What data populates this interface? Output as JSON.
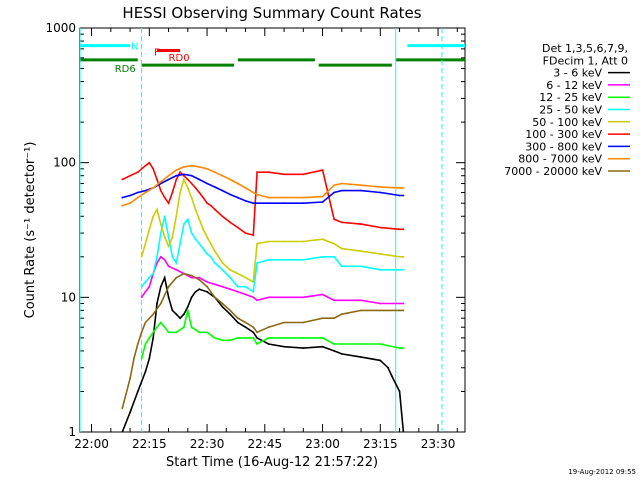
{
  "chart_data": {
    "type": "line",
    "title": "HESSI Observing Summary Count Rates",
    "xlabel": "Start Time (16-Aug-12 21:57:22)",
    "ylabel": "Count Rate (s⁻¹ detector⁻¹)",
    "ylog": true,
    "ylim": [
      1,
      1000
    ],
    "xlim_minutes": [
      -3,
      97
    ],
    "x_ticks": [
      {
        "label": "22:00",
        "min": 0
      },
      {
        "label": "22:15",
        "min": 15
      },
      {
        "label": "22:30",
        "min": 30
      },
      {
        "label": "22:45",
        "min": 45
      },
      {
        "label": "23:00",
        "min": 60
      },
      {
        "label": "23:15",
        "min": 75
      },
      {
        "label": "23:30",
        "min": 90
      }
    ],
    "y_ticks": [
      {
        "label": "1",
        "v": 1
      },
      {
        "label": "10",
        "v": 10
      },
      {
        "label": "100",
        "v": 100
      },
      {
        "label": "1000",
        "v": 1000
      }
    ],
    "legend": {
      "placement": "right",
      "header": [
        "Det 1,3,5,6,7,9,",
        "FDecim 1, Att 0"
      ]
    },
    "series": [
      {
        "name": "3 - 6 keV",
        "color": "#000000",
        "x": [
          8,
          10,
          12,
          14,
          15,
          16,
          17,
          18,
          19,
          20,
          21,
          22,
          23,
          24,
          25,
          26,
          27,
          28,
          30,
          32,
          34,
          36,
          38,
          40,
          42,
          43,
          46,
          50,
          55,
          60,
          63,
          65,
          70,
          75,
          77,
          78,
          80,
          81
        ],
        "y": [
          1,
          1.4,
          2,
          2.8,
          3.5,
          5,
          9,
          12,
          14,
          10,
          8,
          7.5,
          7,
          7.5,
          8.5,
          10,
          11,
          11.5,
          11,
          10,
          8.5,
          7.5,
          6.5,
          6,
          5.5,
          5,
          4.5,
          4.3,
          4.2,
          4.3,
          4,
          3.8,
          3.6,
          3.4,
          3,
          2.6,
          2,
          1
        ]
      },
      {
        "name": "6 - 12 keV",
        "color": "#ff00ff",
        "x": [
          13,
          14,
          15,
          16,
          17,
          18,
          19,
          20,
          22,
          24,
          26,
          28,
          30,
          32,
          34,
          36,
          38,
          40,
          42,
          43,
          46,
          50,
          55,
          60,
          63,
          65,
          70,
          75,
          80,
          81
        ],
        "y": [
          10,
          11,
          12,
          15,
          18,
          20,
          19,
          17,
          16,
          15,
          14,
          14,
          13,
          12.5,
          12,
          11.5,
          11,
          10.5,
          10,
          9.5,
          10,
          10,
          10,
          10.5,
          9.5,
          9.5,
          9.5,
          9,
          9,
          9
        ]
      },
      {
        "name": "12 - 25 keV",
        "color": "#00ff00",
        "x": [
          13,
          14,
          15,
          16,
          17,
          18,
          19,
          20,
          22,
          24,
          25,
          26,
          28,
          30,
          32,
          34,
          36,
          38,
          40,
          42,
          43,
          46,
          50,
          55,
          60,
          63,
          65,
          70,
          75,
          80,
          81
        ],
        "y": [
          3.5,
          4.5,
          5,
          5.5,
          6,
          6.5,
          6,
          5.5,
          5.5,
          6,
          8,
          6,
          5.5,
          5.5,
          5,
          4.8,
          4.8,
          5,
          5,
          5,
          4.5,
          5,
          5,
          5,
          5,
          4.5,
          4.5,
          4.5,
          4.5,
          4.2,
          4.2
        ]
      },
      {
        "name": "25 - 50 keV",
        "color": "#00ffff",
        "x": [
          13,
          14,
          15,
          16,
          17,
          18,
          19,
          20,
          21,
          22,
          23,
          24,
          25,
          26,
          27,
          28,
          29,
          30,
          31,
          32,
          34,
          36,
          38,
          40,
          42,
          43,
          46,
          50,
          55,
          60,
          63,
          65,
          70,
          75,
          80,
          81
        ],
        "y": [
          12,
          13,
          14,
          15,
          20,
          30,
          40,
          28,
          20,
          18,
          25,
          35,
          38,
          30,
          27,
          25,
          23,
          21,
          20,
          18,
          16,
          14,
          12,
          12,
          11,
          18,
          19,
          19,
          19,
          20,
          20,
          17,
          17,
          16,
          16,
          16
        ]
      },
      {
        "name": "50 - 100 keV",
        "color": "#cccc00",
        "x": [
          13,
          14,
          15,
          16,
          17,
          18,
          19,
          20,
          21,
          22,
          23,
          24,
          25,
          26,
          27,
          28,
          29,
          30,
          31,
          32,
          33,
          34,
          36,
          38,
          40,
          42,
          43,
          46,
          50,
          55,
          60,
          63,
          65,
          70,
          75,
          80,
          81
        ],
        "y": [
          20,
          25,
          32,
          40,
          45,
          35,
          28,
          24,
          28,
          40,
          60,
          75,
          65,
          55,
          45,
          38,
          32,
          28,
          25,
          22,
          20,
          18,
          16,
          15,
          14,
          13,
          25,
          26,
          26,
          26,
          27,
          25,
          23,
          22,
          21,
          20,
          20
        ]
      },
      {
        "name": "100 - 300 keV",
        "color": "#ff0000",
        "x": [
          8,
          10,
          12,
          14,
          15,
          16,
          17,
          18,
          19,
          20,
          21,
          22,
          23,
          24,
          25,
          26,
          27,
          28,
          29,
          30,
          31,
          32,
          34,
          36,
          38,
          40,
          42,
          43,
          46,
          50,
          55,
          60,
          63,
          65,
          70,
          75,
          80,
          81
        ],
        "y": [
          75,
          80,
          85,
          95,
          100,
          90,
          75,
          62,
          55,
          50,
          60,
          75,
          85,
          80,
          75,
          70,
          65,
          60,
          55,
          50,
          48,
          45,
          40,
          36,
          33,
          30,
          29,
          85,
          85,
          82,
          82,
          88,
          38,
          36,
          35,
          33,
          32,
          32
        ]
      },
      {
        "name": "300 - 800 keV",
        "color": "#0000ff",
        "x": [
          8,
          10,
          12,
          14,
          16,
          18,
          20,
          22,
          24,
          26,
          28,
          30,
          32,
          34,
          36,
          38,
          40,
          42,
          43,
          46,
          50,
          55,
          60,
          63,
          65,
          70,
          75,
          80,
          81
        ],
        "y": [
          55,
          57,
          60,
          62,
          65,
          70,
          75,
          80,
          82,
          80,
          75,
          70,
          66,
          62,
          58,
          55,
          52,
          50,
          50,
          50,
          50,
          50,
          51,
          60,
          62,
          62,
          60,
          57,
          57
        ]
      },
      {
        "name": "800 - 7000 keV",
        "color": "#ff8800",
        "x": [
          8,
          10,
          12,
          14,
          16,
          18,
          20,
          22,
          24,
          26,
          28,
          30,
          32,
          34,
          36,
          38,
          40,
          42,
          43,
          46,
          50,
          55,
          60,
          63,
          65,
          70,
          75,
          80,
          81
        ],
        "y": [
          48,
          50,
          55,
          60,
          65,
          72,
          80,
          88,
          93,
          95,
          93,
          90,
          85,
          80,
          75,
          70,
          65,
          60,
          58,
          55,
          55,
          55,
          56,
          68,
          70,
          68,
          66,
          65,
          65
        ]
      },
      {
        "name": "7000 - 20000 keV",
        "color": "#8b6914",
        "x": [
          8,
          10,
          11,
          12,
          13,
          14,
          16,
          18,
          20,
          22,
          24,
          26,
          28,
          30,
          32,
          34,
          36,
          38,
          40,
          42,
          43,
          46,
          50,
          55,
          60,
          63,
          65,
          70,
          75,
          80,
          81
        ],
        "y": [
          1.5,
          2.5,
          3.5,
          4.5,
          5.5,
          6.5,
          7.5,
          9,
          12,
          14,
          15,
          14.5,
          13.5,
          12,
          10,
          9,
          8,
          7,
          6.5,
          6,
          5.5,
          6,
          6.5,
          6.5,
          7,
          7,
          7.5,
          8,
          8,
          8,
          8
        ]
      }
    ],
    "overlays": [
      {
        "label": "N",
        "color": "#00ffff",
        "style": "solid-bar",
        "segments": [
          [
            -3,
            10
          ],
          [
            82,
            97
          ]
        ],
        "y": 740
      },
      {
        "label": "F",
        "color": "#ff0000",
        "style": "solid-bar",
        "segments": [
          [
            17,
            23
          ]
        ],
        "y": 680
      },
      {
        "label": "RD0",
        "color": "#ff0000",
        "style": "text-label",
        "x": 20,
        "y": 610
      },
      {
        "label": "RD6",
        "color": "#008000",
        "style": "solid-bar",
        "segments": [
          [
            -3,
            12
          ],
          [
            13,
            37
          ],
          [
            38,
            58
          ],
          [
            59,
            78
          ],
          [
            79,
            97
          ]
        ],
        "levels": [
          580,
          530,
          580,
          530,
          580
        ]
      },
      {
        "label": "",
        "color": "#00ffff",
        "style": "vline-solid",
        "x": [
          -3,
          79
        ]
      },
      {
        "label": "",
        "color": "#00ffff",
        "style": "vline-dashed",
        "x": [
          13,
          91
        ]
      }
    ],
    "timestamp": "19-Aug-2012 09:55"
  }
}
